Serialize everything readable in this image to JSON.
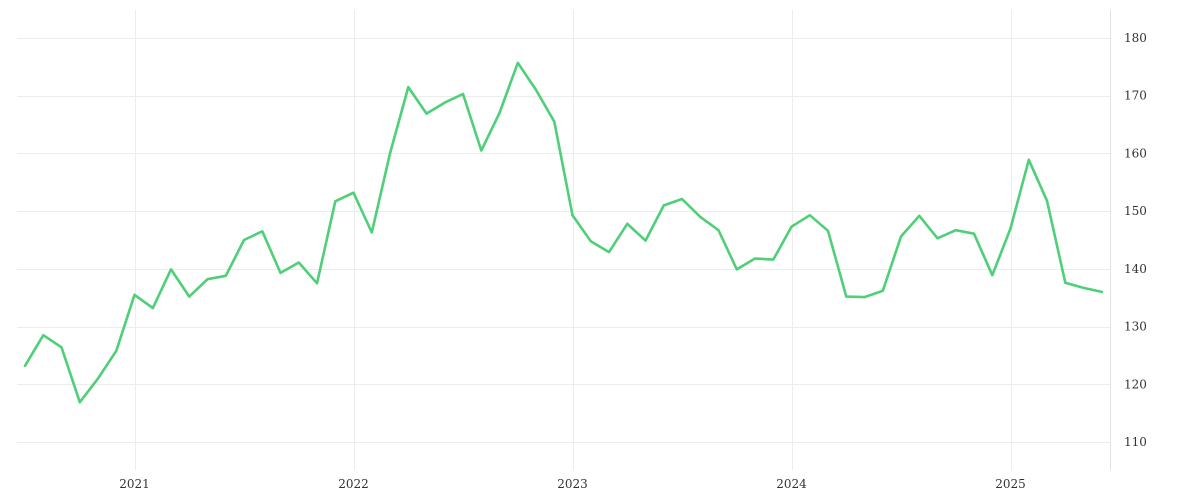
{
  "chart_data": {
    "type": "line",
    "title": "",
    "xlabel": "",
    "ylabel": "",
    "y_axis_position": "right",
    "grid": true,
    "xlim": [
      "2020-07",
      "2025-06"
    ],
    "ylim": [
      105,
      185
    ],
    "x_ticks": [
      {
        "label": "2021",
        "value": "2021-01"
      },
      {
        "label": "2022",
        "value": "2022-01"
      },
      {
        "label": "2023",
        "value": "2023-01"
      },
      {
        "label": "2024",
        "value": "2024-01"
      },
      {
        "label": "2025",
        "value": "2025-01"
      }
    ],
    "y_ticks": [
      110,
      120,
      130,
      140,
      150,
      160,
      170,
      180
    ],
    "series": [
      {
        "color": "#4ecf78",
        "points": [
          [
            "2020-07",
            123.2
          ],
          [
            "2020-08",
            128.5
          ],
          [
            "2020-09",
            126.4
          ],
          [
            "2020-10",
            116.9
          ],
          [
            "2020-11",
            121.0
          ],
          [
            "2020-12",
            125.8
          ],
          [
            "2021-01",
            135.5
          ],
          [
            "2021-02",
            133.2
          ],
          [
            "2021-03",
            139.9
          ],
          [
            "2021-04",
            135.2
          ],
          [
            "2021-05",
            138.2
          ],
          [
            "2021-06",
            138.8
          ],
          [
            "2021-07",
            145.0
          ],
          [
            "2021-08",
            146.5
          ],
          [
            "2021-09",
            139.3
          ],
          [
            "2021-10",
            141.1
          ],
          [
            "2021-11",
            137.5
          ],
          [
            "2021-12",
            151.7
          ],
          [
            "2022-01",
            153.2
          ],
          [
            "2022-02",
            146.3
          ],
          [
            "2022-03",
            160.0
          ],
          [
            "2022-04",
            171.5
          ],
          [
            "2022-05",
            166.9
          ],
          [
            "2022-06",
            168.8
          ],
          [
            "2022-07",
            170.3
          ],
          [
            "2022-08",
            160.5
          ],
          [
            "2022-09",
            167.0
          ],
          [
            "2022-10",
            175.7
          ],
          [
            "2022-11",
            171.0
          ],
          [
            "2022-12",
            165.5
          ],
          [
            "2023-01",
            149.3
          ],
          [
            "2023-02",
            144.8
          ],
          [
            "2023-03",
            142.9
          ],
          [
            "2023-04",
            147.8
          ],
          [
            "2023-05",
            144.9
          ],
          [
            "2023-06",
            151.0
          ],
          [
            "2023-07",
            152.1
          ],
          [
            "2023-08",
            149.0
          ],
          [
            "2023-09",
            146.7
          ],
          [
            "2023-10",
            139.9
          ],
          [
            "2023-11",
            141.8
          ],
          [
            "2023-12",
            141.6
          ],
          [
            "2024-01",
            147.3
          ],
          [
            "2024-02",
            149.3
          ],
          [
            "2024-03",
            146.6
          ],
          [
            "2024-04",
            135.2
          ],
          [
            "2024-05",
            135.1
          ],
          [
            "2024-06",
            136.2
          ],
          [
            "2024-07",
            145.6
          ],
          [
            "2024-08",
            149.2
          ],
          [
            "2024-09",
            145.3
          ],
          [
            "2024-10",
            146.7
          ],
          [
            "2024-11",
            146.1
          ],
          [
            "2024-12",
            138.9
          ],
          [
            "2025-01",
            147.0
          ],
          [
            "2025-02",
            158.9
          ],
          [
            "2025-03",
            151.8
          ],
          [
            "2025-04",
            137.6
          ],
          [
            "2025-05",
            136.7
          ],
          [
            "2025-06",
            136.0
          ]
        ]
      }
    ]
  }
}
